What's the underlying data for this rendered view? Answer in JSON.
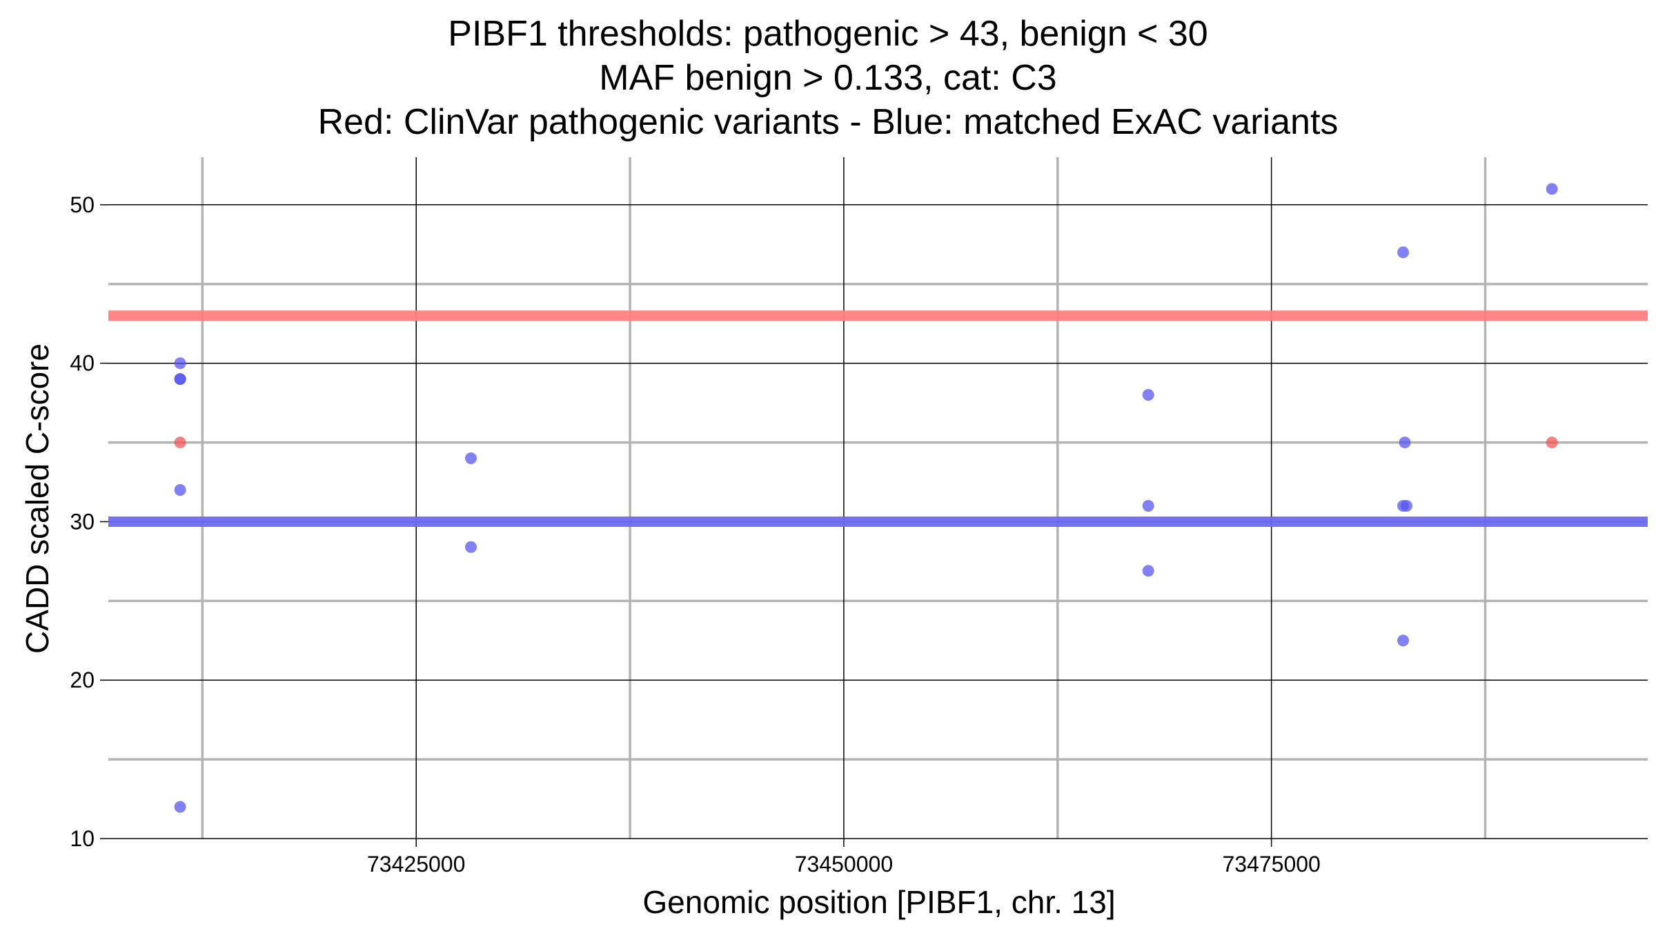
{
  "chart_data": {
    "type": "scatter",
    "title_lines": [
      "PIBF1 thresholds: pathogenic > 43, benign < 30",
      "MAF benign > 0.133, cat: C3",
      "Red: ClinVar pathogenic variants - Blue: matched ExAC variants"
    ],
    "xlabel": "Genomic position [PIBF1, chr. 13]",
    "ylabel": "CADD scaled C-score",
    "xlim": [
      73407000,
      73497000
    ],
    "ylim": [
      10,
      53
    ],
    "x_ticks": [
      73425000,
      73450000,
      73475000
    ],
    "x_minor_ticks": [
      73412500,
      73437500,
      73462500,
      73487500
    ],
    "y_ticks": [
      10,
      20,
      30,
      40,
      50
    ],
    "y_minor_ticks": [
      15,
      25,
      35,
      45
    ],
    "grid": true,
    "thresholds": [
      {
        "name": "pathogenic",
        "value": 43,
        "color": "#ff7f7f"
      },
      {
        "name": "benign",
        "value": 30,
        "color": "#6b6bf0"
      }
    ],
    "series": [
      {
        "name": "ClinVar pathogenic variants",
        "color": "#f25050",
        "points": [
          {
            "x": 73411200,
            "y": 35
          },
          {
            "x": 73491400,
            "y": 35
          }
        ]
      },
      {
        "name": "matched ExAC variants",
        "color": "#5050f0",
        "points": [
          {
            "x": 73411200,
            "y": 40
          },
          {
            "x": 73411200,
            "y": 39
          },
          {
            "x": 73411200,
            "y": 39
          },
          {
            "x": 73411200,
            "y": 32
          },
          {
            "x": 73411200,
            "y": 12
          },
          {
            "x": 73428200,
            "y": 34
          },
          {
            "x": 73428200,
            "y": 28.4
          },
          {
            "x": 73467800,
            "y": 38
          },
          {
            "x": 73467800,
            "y": 31
          },
          {
            "x": 73467800,
            "y": 26.9
          },
          {
            "x": 73482700,
            "y": 47
          },
          {
            "x": 73482800,
            "y": 35
          },
          {
            "x": 73482700,
            "y": 31
          },
          {
            "x": 73482900,
            "y": 31
          },
          {
            "x": 73482700,
            "y": 22.5
          },
          {
            "x": 73491400,
            "y": 51
          }
        ]
      }
    ]
  }
}
